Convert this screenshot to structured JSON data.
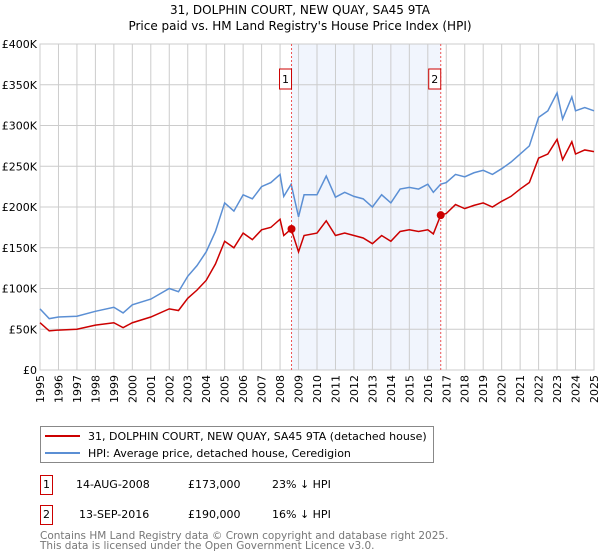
{
  "chart_data": {
    "type": "line",
    "title": "31, DOLPHIN COURT, NEW QUAY, SA45 9TA",
    "subtitle": "Price paid vs. HM Land Registry's House Price Index (HPI)",
    "xlim": [
      1995,
      2025
    ],
    "ylim": [
      0,
      400000
    ],
    "x_ticks": [
      "1995",
      "1996",
      "1997",
      "1998",
      "1999",
      "2000",
      "2001",
      "2002",
      "2003",
      "2004",
      "2005",
      "2006",
      "2007",
      "2008",
      "2009",
      "2010",
      "2011",
      "2012",
      "2013",
      "2014",
      "2015",
      "2016",
      "2017",
      "2018",
      "2019",
      "2020",
      "2021",
      "2022",
      "2023",
      "2024",
      "2025"
    ],
    "y_ticks": [
      {
        "v": 0,
        "l": "£0"
      },
      {
        "v": 50000,
        "l": "£50K"
      },
      {
        "v": 100000,
        "l": "£100K"
      },
      {
        "v": 150000,
        "l": "£150K"
      },
      {
        "v": 200000,
        "l": "£200K"
      },
      {
        "v": 250000,
        "l": "£250K"
      },
      {
        "v": 300000,
        "l": "£300K"
      },
      {
        "v": 350000,
        "l": "£350K"
      },
      {
        "v": 400000,
        "l": "£400K"
      }
    ],
    "grid": true,
    "shaded_range": [
      2008.62,
      2016.7
    ],
    "x": [
      1995,
      1995.5,
      1996,
      1997,
      1998,
      1999,
      1999.5,
      2000,
      2001,
      2002,
      2002.5,
      2003,
      2003.5,
      2004,
      2004.5,
      2005,
      2005.5,
      2006,
      2006.5,
      2007,
      2007.5,
      2008,
      2008.2,
      2008.6,
      2009,
      2009.3,
      2010,
      2010.5,
      2011,
      2011.5,
      2012,
      2012.5,
      2013,
      2013.5,
      2014,
      2014.5,
      2015,
      2015.5,
      2016,
      2016.3,
      2016.7,
      2017,
      2017.5,
      2018,
      2018.5,
      2019,
      2019.5,
      2020,
      2020.5,
      2021,
      2021.5,
      2022,
      2022.5,
      2023,
      2023.3,
      2023.8,
      2024,
      2024.5,
      2025
    ],
    "series": [
      {
        "name": "31, DOLPHIN COURT, NEW QUAY, SA45 9TA (detached house)",
        "color": "#cc0000",
        "values": [
          58,
          48,
          49,
          50,
          55,
          58,
          52,
          58,
          65,
          75,
          73,
          88,
          98,
          110,
          130,
          158,
          150,
          168,
          160,
          172,
          175,
          185,
          165,
          173,
          145,
          165,
          168,
          183,
          165,
          168,
          165,
          162,
          155,
          165,
          158,
          170,
          172,
          170,
          172,
          167,
          190,
          192,
          203,
          198,
          202,
          205,
          200,
          207,
          213,
          222,
          230,
          260,
          265,
          283,
          258,
          280,
          265,
          270,
          268
        ]
      },
      {
        "name": "HPI: Average price, detached house, Ceredigion",
        "color": "#5b8fd4",
        "values": [
          75,
          63,
          65,
          66,
          72,
          77,
          70,
          80,
          87,
          100,
          96,
          115,
          128,
          145,
          170,
          205,
          195,
          215,
          210,
          225,
          230,
          240,
          213,
          228,
          188,
          215,
          215,
          238,
          212,
          218,
          213,
          210,
          200,
          215,
          205,
          222,
          224,
          222,
          228,
          218,
          228,
          230,
          240,
          237,
          242,
          245,
          240,
          247,
          255,
          265,
          275,
          310,
          318,
          340,
          308,
          335,
          318,
          322,
          318
        ]
      }
    ],
    "value_unit": "thousand GBP",
    "sales": [
      {
        "label": "1",
        "x": 2008.62,
        "value": 173,
        "date": "14-AUG-2008",
        "price": "£173,000",
        "hpi": "23% ↓ HPI"
      },
      {
        "label": "2",
        "x": 2016.7,
        "value": 190,
        "date": "13-SEP-2016",
        "price": "£190,000",
        "hpi": "16% ↓ HPI"
      }
    ]
  },
  "footer": {
    "line1": "Contains HM Land Registry data © Crown copyright and database right 2025.",
    "line2": "This data is licensed under the Open Government Licence v3.0."
  }
}
